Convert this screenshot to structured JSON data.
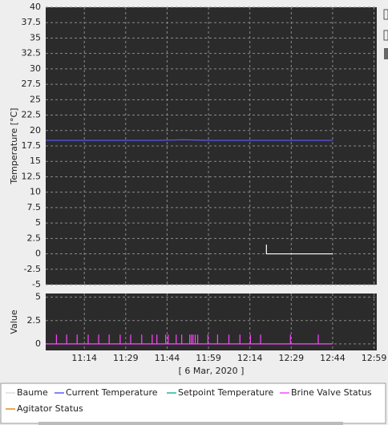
{
  "chart_data": [
    {
      "type": "line",
      "ylabel": "Temperature [°C]",
      "ylim": [
        -5,
        40
      ],
      "yticks": [
        40,
        37.5,
        35,
        32.5,
        30,
        27.5,
        25,
        22.5,
        20,
        17.5,
        15,
        12.5,
        10,
        7.5,
        5,
        2.5,
        0,
        -2.5,
        -5
      ],
      "xlim": [
        660,
        780
      ],
      "grid": true,
      "series": [
        {
          "name": "Baume",
          "color": "#ffffff",
          "x": [
            740,
            740,
            764
          ],
          "values": [
            1.5,
            0,
            0
          ]
        },
        {
          "name": "Current Temperature",
          "color": "#5b5bff",
          "x": [
            660,
            670,
            680,
            690,
            700,
            710,
            720,
            730,
            740,
            750,
            764
          ],
          "values": [
            18.4,
            18.4,
            18.4,
            18.4,
            18.4,
            18.5,
            18.4,
            18.4,
            18.4,
            18.4,
            18.4
          ]
        },
        {
          "name": "Setpoint Temperature",
          "color": "#20b2aa",
          "x": [],
          "values": []
        }
      ]
    },
    {
      "type": "line",
      "ylabel": "Value",
      "ylim": [
        -0.7,
        5.4
      ],
      "yticks": [
        5,
        2.5,
        0
      ],
      "xlim": [
        660,
        780
      ],
      "grid": true,
      "xlabel": "[ 6 Mar, 2020 ]",
      "xticks": [
        {
          "value": 674,
          "label": "11:14"
        },
        {
          "value": 689,
          "label": "11:29"
        },
        {
          "value": 704,
          "label": "11:44"
        },
        {
          "value": 719,
          "label": "11:59"
        },
        {
          "value": 734,
          "label": "12:14"
        },
        {
          "value": 749,
          "label": "12:29"
        },
        {
          "value": 764,
          "label": "12:44"
        },
        {
          "value": 779,
          "label": "12:59"
        }
      ],
      "series": [
        {
          "name": "Brine Valve Status",
          "color": "#ff44ff",
          "x": [
            660,
            663.9,
            663.9,
            663.9,
            667.6,
            667.6,
            667.6,
            671.4,
            671.4,
            671.4,
            675.4,
            675.4,
            675.4,
            679.2,
            679.2,
            679.2,
            683.0,
            683.0,
            683.0,
            687.0,
            687.0,
            687.0,
            690.8,
            690.8,
            690.8,
            694.8,
            694.8,
            694.8,
            698.6,
            698.6,
            698.6,
            700.3,
            700.3,
            700.3,
            703.5,
            703.5,
            703.5,
            704.4,
            704.4,
            704.4,
            707.3,
            707.3,
            707.3,
            709.3,
            709.3,
            709.3,
            712.2,
            712.2,
            712.2,
            712.8,
            712.8,
            712.8,
            713.4,
            713.4,
            713.4,
            714.2,
            714.2,
            714.2,
            715.1,
            715.1,
            715.1,
            718.8,
            718.8,
            718.8,
            722.3,
            722.3,
            722.3,
            726.4,
            726.4,
            726.4,
            730.4,
            730.4,
            730.4,
            734.2,
            734.2,
            734.2,
            737.9,
            737.9,
            737.9,
            748.7,
            748.7,
            748.7,
            758.8,
            758.8,
            758.8,
            764
          ],
          "values": [
            0,
            0,
            1,
            0,
            0,
            1,
            0,
            0,
            1,
            0,
            0,
            1,
            0,
            0,
            1,
            0,
            0,
            1,
            0,
            0,
            1,
            0,
            0,
            1,
            0,
            0,
            1,
            0,
            0,
            1,
            0,
            0,
            1,
            0,
            0,
            1,
            0,
            0,
            1,
            0,
            0,
            1,
            0,
            0,
            1,
            0,
            0,
            1,
            0,
            0,
            1,
            0,
            0,
            1,
            0,
            0,
            1,
            0,
            0,
            1,
            0,
            0,
            1,
            0,
            0,
            1,
            0,
            0,
            1,
            0,
            0,
            1,
            0,
            0,
            1,
            0,
            0,
            1,
            0,
            0,
            1,
            0,
            0,
            1,
            0,
            0
          ]
        },
        {
          "name": "Agitator Status",
          "color": "#e08a1e",
          "x": [],
          "values": []
        }
      ]
    }
  ]
}
